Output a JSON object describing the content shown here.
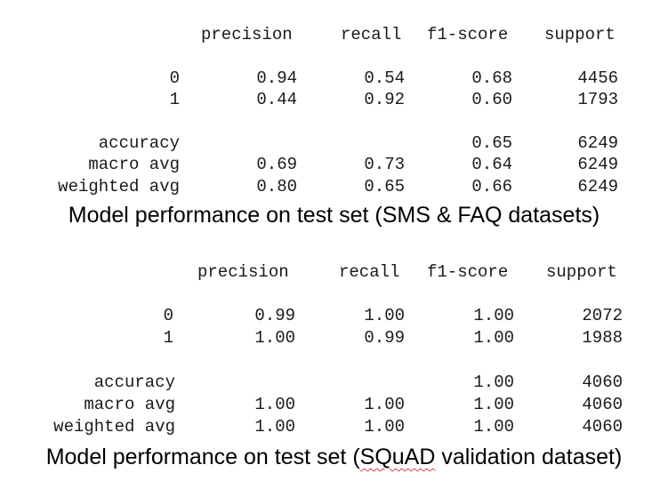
{
  "report1": {
    "headers": [
      "precision",
      "recall",
      "f1-score",
      "support"
    ],
    "rows": [
      {
        "label": "0",
        "precision": "0.94",
        "recall": "0.54",
        "f1": "0.68",
        "support": "4456"
      },
      {
        "label": "1",
        "precision": "0.44",
        "recall": "0.92",
        "f1": "0.60",
        "support": "1793"
      }
    ],
    "accuracy": {
      "label": "accuracy",
      "f1": "0.65",
      "support": "6249"
    },
    "macro": {
      "label": "macro avg",
      "precision": "0.69",
      "recall": "0.73",
      "f1": "0.64",
      "support": "6249"
    },
    "weighted": {
      "label": "weighted avg",
      "precision": "0.80",
      "recall": "0.65",
      "f1": "0.66",
      "support": "6249"
    },
    "caption": "Model performance on test set (SMS & FAQ datasets)"
  },
  "report2": {
    "headers": [
      "precision",
      "recall",
      "f1-score",
      "support"
    ],
    "rows": [
      {
        "label": "0",
        "precision": "0.99",
        "recall": "1.00",
        "f1": "1.00",
        "support": "2072"
      },
      {
        "label": "1",
        "precision": "1.00",
        "recall": "0.99",
        "f1": "1.00",
        "support": "1988"
      }
    ],
    "accuracy": {
      "label": "accuracy",
      "f1": "1.00",
      "support": "4060"
    },
    "macro": {
      "label": "macro avg",
      "precision": "1.00",
      "recall": "1.00",
      "f1": "1.00",
      "support": "4060"
    },
    "weighted": {
      "label": "weighted avg",
      "precision": "1.00",
      "recall": "1.00",
      "f1": "1.00",
      "support": "4060"
    },
    "caption_prefix": "Model performance on test set (",
    "caption_squad": "SQuAD",
    "caption_suffix": " validation dataset)"
  }
}
